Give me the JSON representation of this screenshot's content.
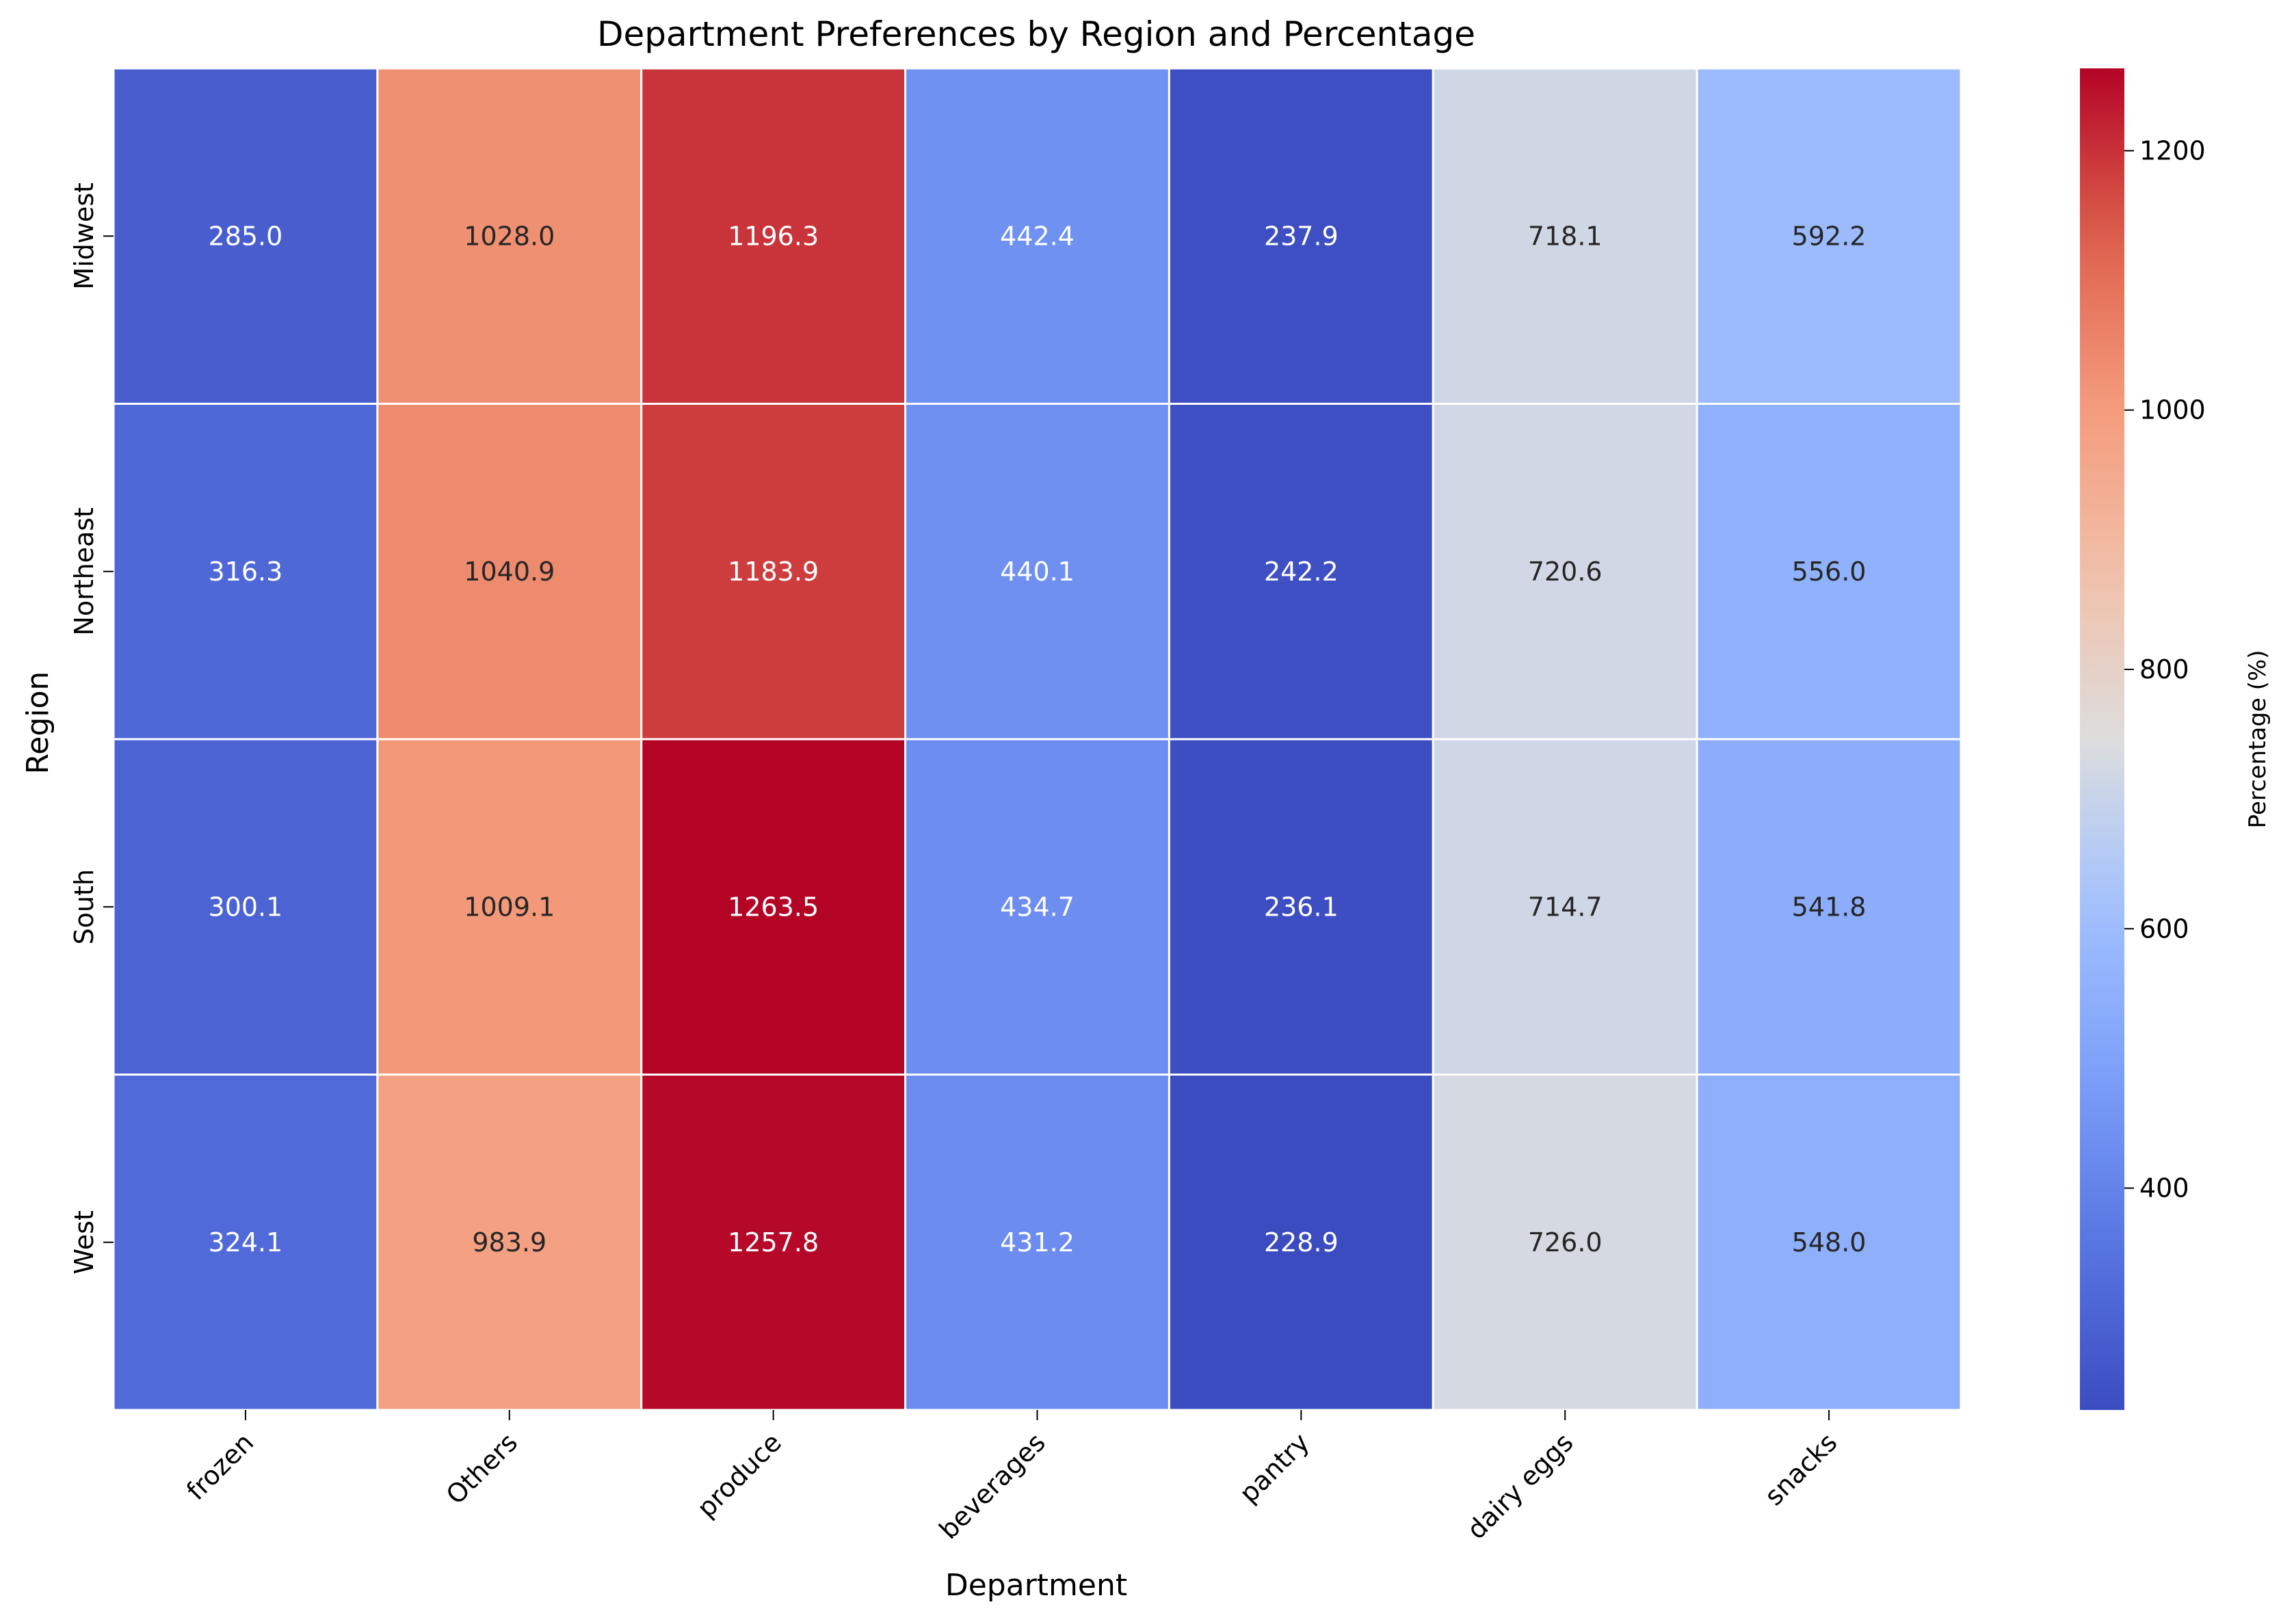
{
  "chart_data": {
    "type": "heatmap",
    "title": "Department Preferences by Region and Percentage",
    "xlabel": "Department",
    "ylabel": "Region",
    "x_categories": [
      "frozen",
      "Others",
      "produce",
      "beverages",
      "pantry",
      "dairy eggs",
      "snacks"
    ],
    "y_categories": [
      "Midwest",
      "Northeast",
      "South",
      "West"
    ],
    "values": [
      [
        285.0,
        1028.0,
        1196.3,
        442.4,
        237.9,
        718.1,
        592.2
      ],
      [
        316.3,
        1040.9,
        1183.9,
        440.1,
        242.2,
        720.6,
        556.0
      ],
      [
        300.1,
        1009.1,
        1263.5,
        434.7,
        236.1,
        714.7,
        541.8
      ],
      [
        324.1,
        983.9,
        1257.8,
        431.2,
        228.9,
        726.0,
        548.0
      ]
    ],
    "value_labels": [
      [
        "285.0",
        "1028.0",
        "1196.3",
        "442.4",
        "237.9",
        "718.1",
        "592.2"
      ],
      [
        "316.3",
        "1040.9",
        "1183.9",
        "440.1",
        "242.2",
        "720.6",
        "556.0"
      ],
      [
        "300.1",
        "1009.1",
        "1263.5",
        "434.7",
        "236.1",
        "714.7",
        "541.8"
      ],
      [
        "324.1",
        "983.9",
        "1257.8",
        "431.2",
        "228.9",
        "726.0",
        "548.0"
      ]
    ],
    "colormap": "coolwarm",
    "vmin": 228.9,
    "vmax": 1263.5,
    "colorbar": {
      "label": "Percentage (%)",
      "ticks": [
        400,
        600,
        800,
        1000,
        1200
      ],
      "tick_labels": [
        "400",
        "600",
        "800",
        "1000",
        "1200"
      ]
    },
    "grid": false,
    "cell_border_color": "#ffffff"
  }
}
